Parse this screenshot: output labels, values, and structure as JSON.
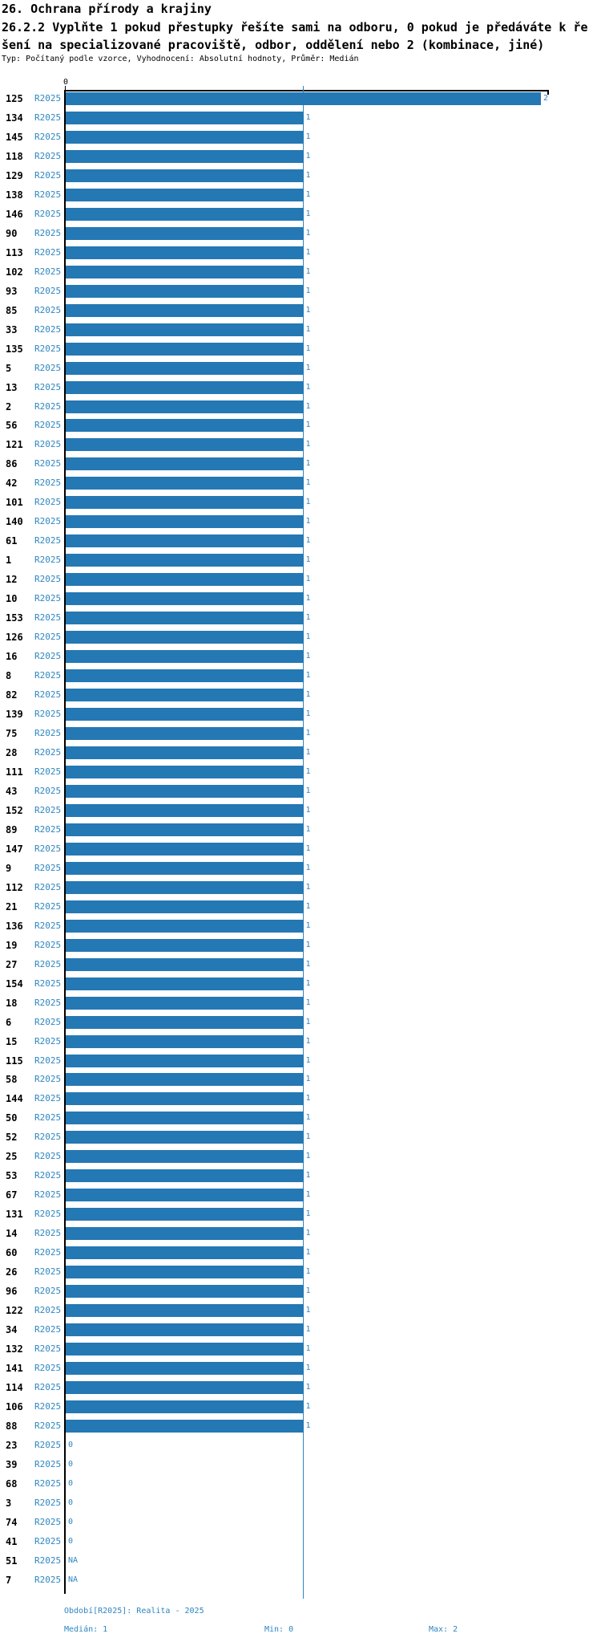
{
  "header": {
    "section_title": "26. Ochrana přírody a krajiny",
    "question_lines": [
      "26.2.2 Vyplňte 1 pokud přestupky řešíte sami na odboru, 0 pokud je předáváte k ře",
      "šení na specializované pracoviště, odbor, oddělení nebo 2 (kombinace, jiné)"
    ],
    "meta": "Typ: Počítaný podle vzorce, Vyhodnocení: Absolutní hodnoty, Průměr: Medián"
  },
  "chart_data": {
    "type": "bar",
    "orientation": "horizontal",
    "series_label": "R2025",
    "axis": {
      "min": 0,
      "max": 2,
      "shown_tick_label": "0",
      "gridline_value": 1
    },
    "rows": [
      {
        "id": "125",
        "value": 2
      },
      {
        "id": "134",
        "value": 1
      },
      {
        "id": "145",
        "value": 1
      },
      {
        "id": "118",
        "value": 1
      },
      {
        "id": "129",
        "value": 1
      },
      {
        "id": "138",
        "value": 1
      },
      {
        "id": "146",
        "value": 1
      },
      {
        "id": "90",
        "value": 1
      },
      {
        "id": "113",
        "value": 1
      },
      {
        "id": "102",
        "value": 1
      },
      {
        "id": "93",
        "value": 1
      },
      {
        "id": "85",
        "value": 1
      },
      {
        "id": "33",
        "value": 1
      },
      {
        "id": "135",
        "value": 1
      },
      {
        "id": "5",
        "value": 1
      },
      {
        "id": "13",
        "value": 1
      },
      {
        "id": "2",
        "value": 1
      },
      {
        "id": "56",
        "value": 1
      },
      {
        "id": "121",
        "value": 1
      },
      {
        "id": "86",
        "value": 1
      },
      {
        "id": "42",
        "value": 1
      },
      {
        "id": "101",
        "value": 1
      },
      {
        "id": "140",
        "value": 1
      },
      {
        "id": "61",
        "value": 1
      },
      {
        "id": "1",
        "value": 1
      },
      {
        "id": "12",
        "value": 1
      },
      {
        "id": "10",
        "value": 1
      },
      {
        "id": "153",
        "value": 1
      },
      {
        "id": "126",
        "value": 1
      },
      {
        "id": "16",
        "value": 1
      },
      {
        "id": "8",
        "value": 1
      },
      {
        "id": "82",
        "value": 1
      },
      {
        "id": "139",
        "value": 1
      },
      {
        "id": "75",
        "value": 1
      },
      {
        "id": "28",
        "value": 1
      },
      {
        "id": "111",
        "value": 1
      },
      {
        "id": "43",
        "value": 1
      },
      {
        "id": "152",
        "value": 1
      },
      {
        "id": "89",
        "value": 1
      },
      {
        "id": "147",
        "value": 1
      },
      {
        "id": "9",
        "value": 1
      },
      {
        "id": "112",
        "value": 1
      },
      {
        "id": "21",
        "value": 1
      },
      {
        "id": "136",
        "value": 1
      },
      {
        "id": "19",
        "value": 1
      },
      {
        "id": "27",
        "value": 1
      },
      {
        "id": "154",
        "value": 1
      },
      {
        "id": "18",
        "value": 1
      },
      {
        "id": "6",
        "value": 1
      },
      {
        "id": "15",
        "value": 1
      },
      {
        "id": "115",
        "value": 1
      },
      {
        "id": "58",
        "value": 1
      },
      {
        "id": "144",
        "value": 1
      },
      {
        "id": "50",
        "value": 1
      },
      {
        "id": "52",
        "value": 1
      },
      {
        "id": "25",
        "value": 1
      },
      {
        "id": "53",
        "value": 1
      },
      {
        "id": "67",
        "value": 1
      },
      {
        "id": "131",
        "value": 1
      },
      {
        "id": "14",
        "value": 1
      },
      {
        "id": "60",
        "value": 1
      },
      {
        "id": "26",
        "value": 1
      },
      {
        "id": "96",
        "value": 1
      },
      {
        "id": "122",
        "value": 1
      },
      {
        "id": "34",
        "value": 1
      },
      {
        "id": "132",
        "value": 1
      },
      {
        "id": "141",
        "value": 1
      },
      {
        "id": "114",
        "value": 1
      },
      {
        "id": "106",
        "value": 1
      },
      {
        "id": "88",
        "value": 1
      },
      {
        "id": "23",
        "value": 0
      },
      {
        "id": "39",
        "value": 0
      },
      {
        "id": "68",
        "value": 0
      },
      {
        "id": "3",
        "value": 0
      },
      {
        "id": "74",
        "value": 0
      },
      {
        "id": "41",
        "value": 0
      },
      {
        "id": "51",
        "value": "NA"
      },
      {
        "id": "7",
        "value": "NA"
      }
    ],
    "stats": {
      "median": 1,
      "min": 0,
      "max": 2
    }
  },
  "footer": {
    "period": "Období[R2025]: Realita - 2025",
    "median": "Medián: 1",
    "min": "Min: 0",
    "max": "Max: 2"
  },
  "colors": {
    "bar": "#2478b4",
    "blue_text": "#2e86c1",
    "gridline": "#2e86c1",
    "axis": "#000000"
  }
}
